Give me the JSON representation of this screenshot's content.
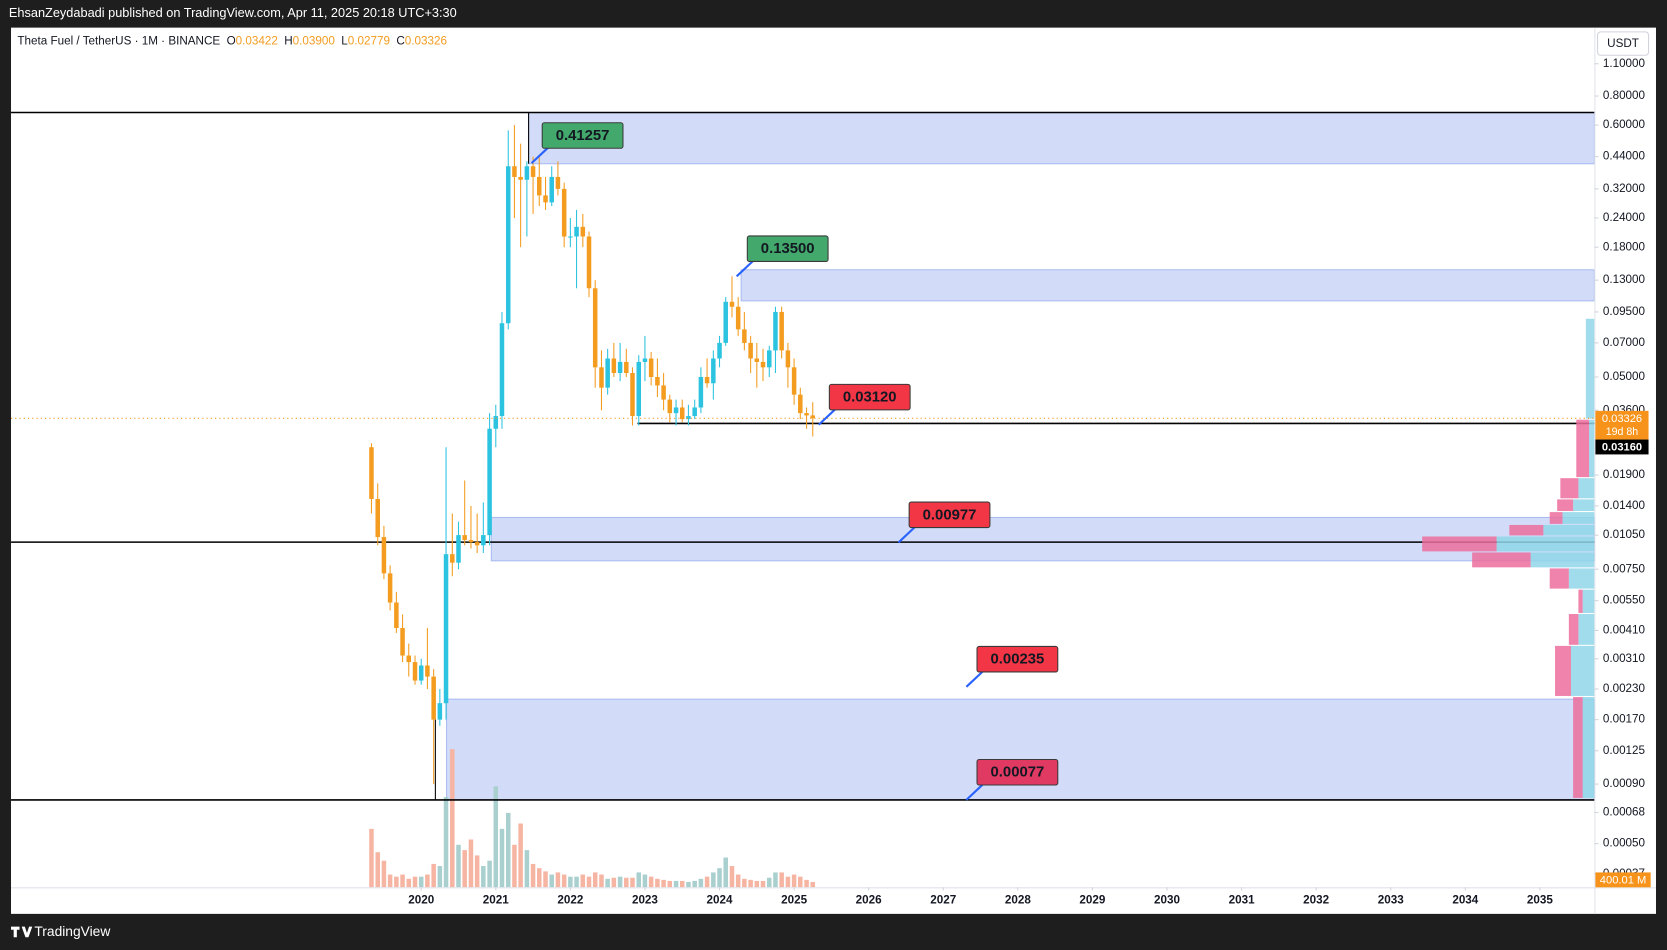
{
  "header": {
    "text": "EhsanZeydabadi published on TradingView.com, Apr 11, 2025 20:18 UTC+3:30"
  },
  "footer": {
    "brand": "TradingView"
  },
  "chart_data": {
    "type": "candlestick",
    "title": "Theta Fuel / TetherUS · 1M · BINANCE",
    "ohlc_legend": [
      {
        "key": "O",
        "value": "0.03422"
      },
      {
        "key": "H",
        "value": "0.03900"
      },
      {
        "key": "L",
        "value": "0.02779"
      },
      {
        "key": "C",
        "value": "0.03326"
      }
    ],
    "currency": "USDT",
    "log_scale": true,
    "grid": false,
    "up_color": "#2bc3e0",
    "down_color": "#f39c1f",
    "x": [
      2019.333,
      2019.417,
      2019.5,
      2019.583,
      2019.667,
      2019.75,
      2019.833,
      2019.917,
      2020,
      2020.083,
      2020.167,
      2020.25,
      2020.333,
      2020.417,
      2020.5,
      2020.583,
      2020.667,
      2020.75,
      2020.833,
      2020.917,
      2021,
      2021.083,
      2021.167,
      2021.25,
      2021.333,
      2021.417,
      2021.5,
      2021.583,
      2021.667,
      2021.75,
      2021.833,
      2021.917,
      2022,
      2022.083,
      2022.167,
      2022.25,
      2022.333,
      2022.417,
      2022.5,
      2022.583,
      2022.667,
      2022.75,
      2022.833,
      2022.917,
      2023,
      2023.083,
      2023.167,
      2023.25,
      2023.333,
      2023.417,
      2023.5,
      2023.583,
      2023.667,
      2023.75,
      2023.833,
      2023.917,
      2024,
      2024.083,
      2024.167,
      2024.25,
      2024.333,
      2024.417,
      2024.5,
      2024.583,
      2024.667,
      2024.75,
      2024.833,
      2024.917,
      2025,
      2025.083,
      2025.167,
      2025.25
    ],
    "open": [
      0.025,
      0.015,
      0.0103,
      0.0072,
      0.0054,
      0.0042,
      0.0032,
      0.003,
      0.0025,
      0.0029,
      0.0026,
      0.0017,
      0.002,
      0.0087,
      0.008,
      0.0105,
      0.01,
      0.0098,
      0.0095,
      0.0105,
      0.03,
      0.034,
      0.085,
      0.4,
      0.36,
      0.35,
      0.4,
      0.36,
      0.3,
      0.28,
      0.36,
      0.32,
      0.2,
      0.2,
      0.22,
      0.2,
      0.12,
      0.055,
      0.045,
      0.06,
      0.052,
      0.058,
      0.052,
      0.034,
      0.058,
      0.06,
      0.05,
      0.046,
      0.04,
      0.035,
      0.037,
      0.033,
      0.034,
      0.037,
      0.05,
      0.047,
      0.06,
      0.07,
      0.105,
      0.1,
      0.08,
      0.07,
      0.06,
      0.058,
      0.055,
      0.065,
      0.095,
      0.065,
      0.055,
      0.042,
      0.035,
      0.03422
    ],
    "high": [
      0.026,
      0.0175,
      0.0115,
      0.0078,
      0.006,
      0.0048,
      0.0036,
      0.0032,
      0.0031,
      0.0042,
      0.0028,
      0.0023,
      0.025,
      0.013,
      0.012,
      0.018,
      0.014,
      0.013,
      0.0145,
      0.035,
      0.038,
      0.095,
      0.57,
      0.6,
      0.5,
      0.42,
      0.44,
      0.44,
      0.36,
      0.4,
      0.42,
      0.34,
      0.24,
      0.26,
      0.25,
      0.21,
      0.13,
      0.065,
      0.066,
      0.07,
      0.07,
      0.066,
      0.055,
      0.062,
      0.075,
      0.064,
      0.06,
      0.052,
      0.042,
      0.04,
      0.04,
      0.038,
      0.04,
      0.055,
      0.06,
      0.065,
      0.075,
      0.11,
      0.135,
      0.11,
      0.095,
      0.075,
      0.07,
      0.066,
      0.068,
      0.1,
      0.1,
      0.07,
      0.06,
      0.045,
      0.037,
      0.039
    ],
    "low": [
      0.013,
      0.0095,
      0.0068,
      0.005,
      0.004,
      0.003,
      0.0026,
      0.0024,
      0.0024,
      0.0023,
      0.0009,
      0.0016,
      0.0017,
      0.007,
      0.0075,
      0.0095,
      0.0092,
      0.0088,
      0.0088,
      0.0095,
      0.025,
      0.03,
      0.08,
      0.24,
      0.18,
      0.2,
      0.25,
      0.27,
      0.26,
      0.27,
      0.3,
      0.18,
      0.18,
      0.12,
      0.18,
      0.11,
      0.045,
      0.036,
      0.042,
      0.05,
      0.048,
      0.05,
      0.031,
      0.031,
      0.048,
      0.046,
      0.041,
      0.036,
      0.032,
      0.031,
      0.032,
      0.031,
      0.033,
      0.035,
      0.045,
      0.04,
      0.055,
      0.068,
      0.09,
      0.075,
      0.065,
      0.052,
      0.045,
      0.048,
      0.05,
      0.052,
      0.06,
      0.045,
      0.038,
      0.033,
      0.03,
      0.02779
    ],
    "close": [
      0.015,
      0.0103,
      0.0072,
      0.0054,
      0.0042,
      0.0032,
      0.003,
      0.0025,
      0.0029,
      0.0026,
      0.0017,
      0.002,
      0.0087,
      0.008,
      0.0105,
      0.01,
      0.0098,
      0.0095,
      0.0105,
      0.03,
      0.034,
      0.085,
      0.4,
      0.36,
      0.35,
      0.4,
      0.36,
      0.3,
      0.28,
      0.36,
      0.32,
      0.2,
      0.2,
      0.22,
      0.2,
      0.12,
      0.055,
      0.045,
      0.06,
      0.052,
      0.058,
      0.052,
      0.034,
      0.058,
      0.06,
      0.05,
      0.046,
      0.04,
      0.035,
      0.037,
      0.033,
      0.034,
      0.037,
      0.05,
      0.047,
      0.06,
      0.07,
      0.105,
      0.1,
      0.08,
      0.07,
      0.06,
      0.058,
      0.055,
      0.065,
      0.095,
      0.065,
      0.055,
      0.042,
      0.035,
      0.03422,
      0.03326
    ],
    "volume": {
      "up_color": "#a9cfcf",
      "down_color": "#f6b4a2",
      "ylim": [
        0,
        10800
      ],
      "values": [
        4400,
        2640,
        2000,
        960,
        800,
        960,
        640,
        800,
        800,
        960,
        1760,
        1600,
        6800,
        10400,
        3200,
        2800,
        3600,
        2400,
        1600,
        2000,
        7600,
        4400,
        5600,
        3200,
        4800,
        2800,
        1760,
        1440,
        1200,
        960,
        1120,
        960,
        800,
        800,
        960,
        800,
        1120,
        960,
        640,
        720,
        800,
        720,
        720,
        1120,
        960,
        800,
        640,
        560,
        480,
        480,
        480,
        400,
        480,
        640,
        800,
        1120,
        1440,
        2240,
        1600,
        960,
        640,
        560,
        480,
        480,
        720,
        1120,
        1120,
        800,
        960,
        800,
        560,
        400.01
      ],
      "last_label": "400.01 M"
    },
    "volume_profile": {
      "up_color": "#8fd6e8",
      "down_color": "#ec6d9c",
      "rows": [
        {
          "low": 0.0328,
          "high": 0.0888,
          "up": 8,
          "down": 0
        },
        {
          "low": 0.01842,
          "high": 0.0328,
          "up": 5,
          "down": 12
        },
        {
          "low": 0.01494,
          "high": 0.01842,
          "up": 15,
          "down": 17
        },
        {
          "low": 0.01318,
          "high": 0.01494,
          "up": 20,
          "down": 15
        },
        {
          "low": 0.01161,
          "high": 0.01318,
          "up": 30,
          "down": 12
        },
        {
          "low": 0.01036,
          "high": 0.01161,
          "up": 48,
          "down": 32
        },
        {
          "low": 0.00885,
          "high": 0.01036,
          "up": 92,
          "down": 70
        },
        {
          "low": 0.00756,
          "high": 0.00885,
          "up": 60,
          "down": 55
        },
        {
          "low": 0.00613,
          "high": 0.00756,
          "up": 24,
          "down": 18
        },
        {
          "low": 0.00482,
          "high": 0.00613,
          "up": 11,
          "down": 4
        },
        {
          "low": 0.00352,
          "high": 0.00482,
          "up": 15,
          "down": 9
        },
        {
          "low": 0.002125,
          "high": 0.00352,
          "up": 22,
          "down": 15
        },
        {
          "low": 0.000777,
          "high": 0.002125,
          "up": 11,
          "down": 9
        }
      ]
    },
    "xlim": [
      2014.5,
      2035.73
    ],
    "xticks": [
      2020,
      2021,
      2022,
      2023,
      2024,
      2025,
      2026,
      2027,
      2028,
      2029,
      2030,
      2031,
      2032,
      2033,
      2034,
      2035
    ],
    "ylim": [
      0.000325,
      1.571
    ],
    "yticks": [
      {
        "value": 1.1,
        "label": "1.10000"
      },
      {
        "value": 0.8,
        "label": "0.80000"
      },
      {
        "value": 0.6,
        "label": "0.60000"
      },
      {
        "value": 0.44,
        "label": "0.44000"
      },
      {
        "value": 0.32,
        "label": "0.32000"
      },
      {
        "value": 0.24,
        "label": "0.24000"
      },
      {
        "value": 0.18,
        "label": "0.18000"
      },
      {
        "value": 0.13,
        "label": "0.13000"
      },
      {
        "value": 0.095,
        "label": "0.09500"
      },
      {
        "value": 0.07,
        "label": "0.07000"
      },
      {
        "value": 0.05,
        "label": "0.05000"
      },
      {
        "value": 0.036,
        "label": "0.03600"
      },
      {
        "value": 0.019,
        "label": "0.01900"
      },
      {
        "value": 0.014,
        "label": "0.01400"
      },
      {
        "value": 0.0105,
        "label": "0.01050"
      },
      {
        "value": 0.0075,
        "label": "0.00750"
      },
      {
        "value": 0.0055,
        "label": "0.00550"
      },
      {
        "value": 0.0041,
        "label": "0.00410"
      },
      {
        "value": 0.0031,
        "label": "0.00310"
      },
      {
        "value": 0.0023,
        "label": "0.00230"
      },
      {
        "value": 0.0017,
        "label": "0.00170"
      },
      {
        "value": 0.00125,
        "label": "0.00125"
      },
      {
        "value": 0.0009,
        "label": "0.00090"
      },
      {
        "value": 0.00068,
        "label": "0.00068"
      },
      {
        "value": 0.0005,
        "label": "0.00050"
      },
      {
        "value": 0.00037,
        "label": "0.00037"
      }
    ],
    "last_price": {
      "value": 0.03326,
      "label": "0.03326",
      "countdown": "19d 8h",
      "color": "#f7931a"
    },
    "zones": [
      {
        "low": 0.41,
        "high": 0.68,
        "x_start": 2021.44
      },
      {
        "low": 0.106,
        "high": 0.144,
        "x_start": 2024.29
      },
      {
        "low": 0.00815,
        "high": 0.0125,
        "x_start": 2020.94
      },
      {
        "low": 0.00077,
        "high": 0.00208,
        "x_start": 2020.34
      }
    ],
    "levels": [
      {
        "value": 0.68
      },
      {
        "value": 0.0316,
        "x_start": 2022.9,
        "label": "0.03160"
      },
      {
        "value": 0.0098
      },
      {
        "value": 0.00077
      }
    ],
    "vlines": [
      {
        "x": 2021.44,
        "from": 0.68,
        "to": 0.41
      },
      {
        "x": 2020.19,
        "from": 0.00077,
        "to": 0.0017
      }
    ],
    "annotations": [
      {
        "x": 2021.48,
        "value": 0.41257,
        "color": "#43a86b"
      },
      {
        "x": 2024.23,
        "value": 0.135,
        "label": "0.13500",
        "color": "#43a86b"
      },
      {
        "x": 2025.33,
        "value": 0.0312,
        "label": "0.03120",
        "color": "#f23645"
      },
      {
        "x": 2026.4,
        "value": 0.00977,
        "color": "#f23645"
      },
      {
        "x": 2027.31,
        "value": 0.00235,
        "color": "#f23645"
      },
      {
        "x": 2027.31,
        "value": 0.00077,
        "color": "#e03a62"
      }
    ]
  }
}
